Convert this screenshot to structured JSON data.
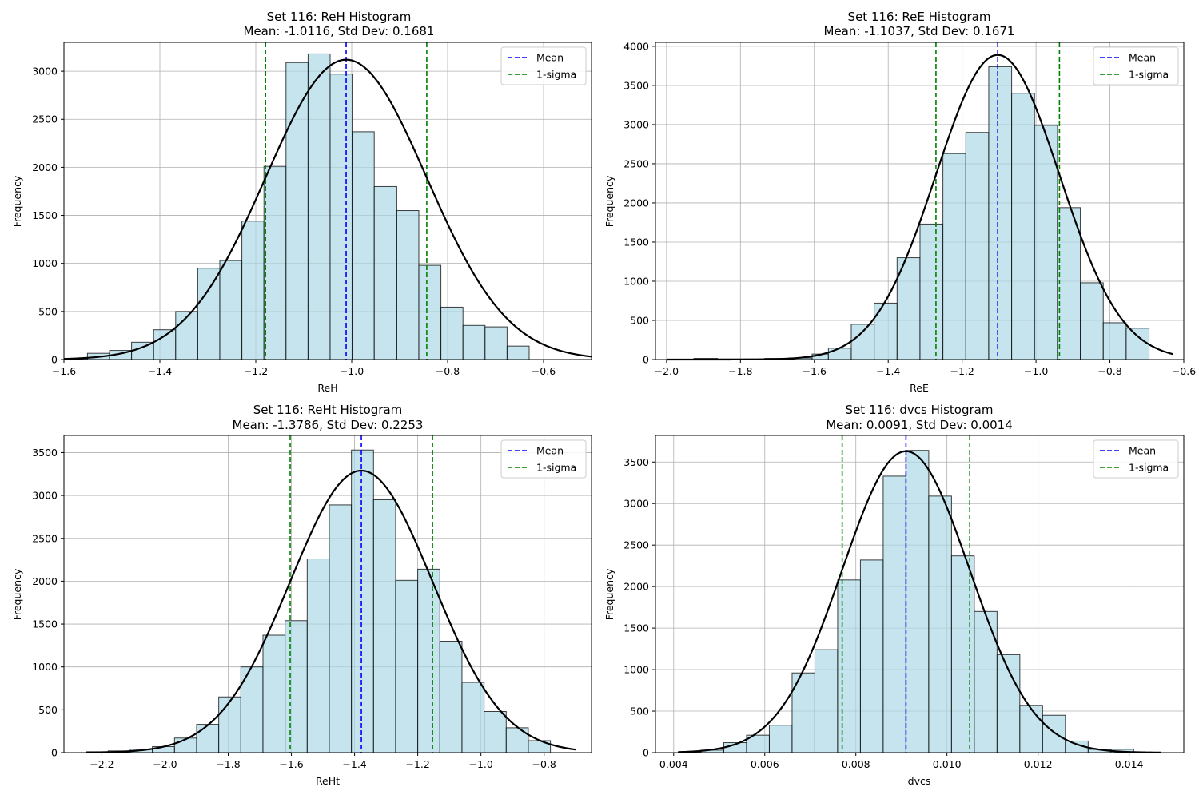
{
  "colors": {
    "bar_fill": "#add8e6",
    "bar_edge": "#000000",
    "mean_line": "#0000ff",
    "sigma_line": "#008000",
    "fit_curve": "#000000",
    "grid": "#b0b0b0"
  },
  "chart_data": [
    {
      "type": "bar",
      "title": "Set 116: ReH Histogram",
      "subtitle": "Mean: -1.0116, Std Dev: 0.1681",
      "xlabel": "ReH",
      "ylabel": "Frequency",
      "xlim": [
        -1.6,
        -0.5
      ],
      "ylim": [
        0,
        3300
      ],
      "xticks": [
        -1.6,
        -1.4,
        -1.2,
        -1.0,
        -0.8,
        -0.6
      ],
      "xtick_labels": [
        "−1.6",
        "−1.4",
        "−1.2",
        "−1.0",
        "−0.8",
        "−0.6"
      ],
      "yticks": [
        0,
        500,
        1000,
        1500,
        2000,
        2500,
        3000
      ],
      "ytick_labels": [
        "0",
        "500",
        "1000",
        "1500",
        "2000",
        "2500",
        "3000"
      ],
      "grid": true,
      "legend_position": "top-right",
      "legend": [
        "Mean",
        "1-sigma"
      ],
      "mean": -1.0116,
      "std": 0.1681,
      "bin_edges": [
        -1.598,
        -1.551,
        -1.505,
        -1.459,
        -1.413,
        -1.367,
        -1.321,
        -1.275,
        -1.229,
        -1.183,
        -1.137,
        -1.091,
        -1.045,
        -0.999,
        -0.953,
        -0.906,
        -0.86,
        -0.814,
        -0.768,
        -0.722,
        -0.676,
        -0.63,
        -0.6
      ],
      "counts": [
        10,
        65,
        95,
        180,
        310,
        500,
        950,
        1030,
        1440,
        2010,
        3090,
        3180,
        2970,
        2370,
        1800,
        1550,
        980,
        545,
        355,
        340,
        140,
        0
      ],
      "fit_peak": 3120,
      "fit_xrange": [
        -1.6,
        -0.5
      ]
    },
    {
      "type": "bar",
      "title": "Set 116: ReE Histogram",
      "subtitle": "Mean: -1.1037, Std Dev: 0.1671",
      "xlabel": "ReE",
      "ylabel": "Frequency",
      "xlim": [
        -2.03,
        -0.6
      ],
      "ylim": [
        0,
        4050
      ],
      "xticks": [
        -2.0,
        -1.8,
        -1.6,
        -1.4,
        -1.2,
        -1.0,
        -0.8,
        -0.6
      ],
      "xtick_labels": [
        "−2.0",
        "−1.8",
        "−1.6",
        "−1.4",
        "−1.2",
        "−1.0",
        "−0.8",
        "−0.6"
      ],
      "yticks": [
        0,
        500,
        1000,
        1500,
        2000,
        2500,
        3000,
        3500,
        4000
      ],
      "ytick_labels": [
        "0",
        "500",
        "1000",
        "1500",
        "2000",
        "2500",
        "3000",
        "3500",
        "4000"
      ],
      "grid": true,
      "legend_position": "top-right",
      "legend": [
        "Mean",
        "1-sigma"
      ],
      "mean": -1.1037,
      "std": 0.1671,
      "bin_edges": [
        -1.99,
        -1.926,
        -1.862,
        -1.798,
        -1.734,
        -1.67,
        -1.606,
        -1.562,
        -1.5,
        -1.438,
        -1.376,
        -1.314,
        -1.252,
        -1.19,
        -1.128,
        -1.066,
        -1.004,
        -0.942,
        -0.88,
        -0.818,
        -0.756,
        -0.694
      ],
      "counts": [
        5,
        15,
        8,
        8,
        15,
        20,
        70,
        145,
        450,
        720,
        1300,
        1730,
        2630,
        2900,
        3740,
        3400,
        2990,
        1940,
        980,
        470,
        400
      ],
      "fit_peak": 3890,
      "fit_xrange": [
        -2.0,
        -0.63
      ]
    },
    {
      "type": "bar",
      "title": "Set 116: ReHt Histogram",
      "subtitle": "Mean: -1.3786, Std Dev: 0.2253",
      "xlabel": "ReHt",
      "ylabel": "Frequency",
      "xlim": [
        -2.32,
        -0.65
      ],
      "ylim": [
        0,
        3700
      ],
      "xticks": [
        -2.2,
        -2.0,
        -1.8,
        -1.6,
        -1.4,
        -1.2,
        -1.0,
        -0.8
      ],
      "xtick_labels": [
        "−2.2",
        "−2.0",
        "−1.8",
        "−1.6",
        "−1.4",
        "−1.2",
        "−1.0",
        "−0.8"
      ],
      "yticks": [
        0,
        500,
        1000,
        1500,
        2000,
        2500,
        3000,
        3500
      ],
      "ytick_labels": [
        "0",
        "500",
        "1000",
        "1500",
        "2000",
        "2500",
        "3000",
        "3500"
      ],
      "grid": true,
      "legend_position": "top-right",
      "legend": [
        "Mean",
        "1-sigma"
      ],
      "mean": -1.3786,
      "std": 0.2253,
      "bin_edges": [
        -2.25,
        -2.18,
        -2.11,
        -2.04,
        -1.97,
        -1.9,
        -1.83,
        -1.76,
        -1.69,
        -1.62,
        -1.55,
        -1.48,
        -1.41,
        -1.34,
        -1.27,
        -1.2,
        -1.13,
        -1.06,
        -0.99,
        -0.92,
        -0.85,
        -0.78
      ],
      "counts": [
        10,
        20,
        40,
        70,
        170,
        330,
        650,
        1000,
        1370,
        1540,
        2260,
        2890,
        3530,
        2950,
        2010,
        2140,
        1300,
        820,
        480,
        290,
        140
      ],
      "fit_peak": 3290,
      "fit_xrange": [
        -2.25,
        -0.7
      ]
    },
    {
      "type": "bar",
      "title": "Set 116: dvcs Histogram",
      "subtitle": "Mean: 0.0091, Std Dev: 0.0014",
      "xlabel": "dvcs",
      "ylabel": "Frequency",
      "xlim": [
        0.0036,
        0.0152
      ],
      "ylim": [
        0,
        3820
      ],
      "xticks": [
        0.004,
        0.006,
        0.008,
        0.01,
        0.012,
        0.014
      ],
      "xtick_labels": [
        "0.004",
        "0.006",
        "0.008",
        "0.010",
        "0.012",
        "0.014"
      ],
      "yticks": [
        0,
        500,
        1000,
        1500,
        2000,
        2500,
        3000,
        3500
      ],
      "ytick_labels": [
        "0",
        "500",
        "1000",
        "1500",
        "2000",
        "2500",
        "3000",
        "3500"
      ],
      "grid": true,
      "legend_position": "top-right",
      "legend": [
        "Mean",
        "1-sigma"
      ],
      "mean": 0.0091,
      "std": 0.0014,
      "bin_edges": [
        0.0041,
        0.0046,
        0.0051,
        0.0056,
        0.0061,
        0.0066,
        0.0071,
        0.0076,
        0.0081,
        0.0086,
        0.0091,
        0.0096,
        0.0101,
        0.0106,
        0.0111,
        0.0116,
        0.0121,
        0.0126,
        0.0131,
        0.0136,
        0.0141
      ],
      "counts": [
        10,
        30,
        120,
        210,
        330,
        960,
        1240,
        2080,
        2320,
        3330,
        3640,
        3090,
        2370,
        1700,
        1180,
        570,
        450,
        140,
        40,
        40
      ],
      "fit_peak": 3630,
      "fit_xrange": [
        0.0041,
        0.0147
      ]
    }
  ]
}
